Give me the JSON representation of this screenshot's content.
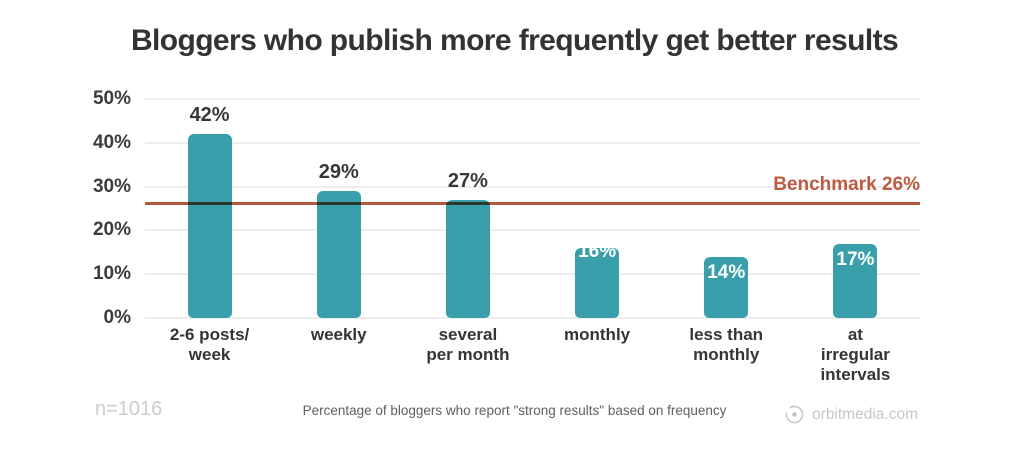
{
  "title": "Bloggers who publish more frequently get better results",
  "chart_data": {
    "type": "bar",
    "title": "Bloggers who publish more frequently get better results",
    "categories": [
      "2-6 posts/\nweek",
      "weekly",
      "several\nper month",
      "monthly",
      "less than\nmonthly",
      "at\nirregular\nintervals"
    ],
    "values": [
      42,
      29,
      27,
      16,
      14,
      17
    ],
    "value_labels": [
      "42%",
      "29%",
      "27%",
      "16%",
      "14%",
      "17%"
    ],
    "label_placement": [
      "above",
      "above",
      "above",
      "inside-top-clipped",
      "inside",
      "inside"
    ],
    "xlabel": "",
    "ylabel": "",
    "ylim": [
      0,
      50
    ],
    "yticks": [
      "0%",
      "10%",
      "20%",
      "30%",
      "40%",
      "50%"
    ],
    "grid": true,
    "legend": "none",
    "bar_color": "#399fab",
    "benchmark_line": {
      "value": 26,
      "label": "Benchmark 26%",
      "color": "#b2583e"
    }
  },
  "footer": {
    "sample_size": "n=1016",
    "caption": "Percentage of bloggers who report \"strong results\" based on frequency",
    "brand": "orbitmedia.com",
    "brand_icon": "orbit-logo-icon"
  }
}
